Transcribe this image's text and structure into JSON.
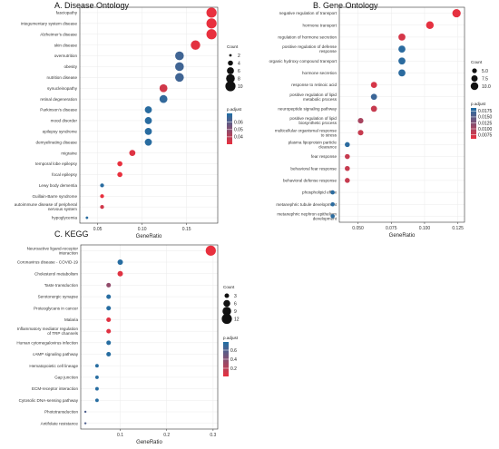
{
  "chart_data": [
    {
      "type": "scatter",
      "title": "A. Disease Ontology",
      "xlabel": "GeneRatio",
      "ylabel": "",
      "xlim": [
        0.03,
        0.185
      ],
      "xticks": [
        0.05,
        0.1,
        0.15
      ],
      "xtick_labels": [
        "0.05",
        "0.10",
        "0.15"
      ],
      "categories": [
        "fasciopathy",
        "integumentary system disease",
        "Alzheimer's disease",
        "skin disease",
        "overnutrition",
        "obesity",
        "nutrition disease",
        "synucleinopathy",
        "retinal degeneration",
        "Parkinson's disease",
        "mood disorder",
        "epilepsy syndrome",
        "demyelinating disease",
        "migraine",
        "temporal lobe epilepsy",
        "focal epilepsy",
        "Lewy body dementia",
        "Guillain-Barre syndrome",
        "autoimmune disease of peripheral nervous system",
        "hypoglycemia"
      ],
      "x": [
        0.178,
        0.178,
        0.178,
        0.16,
        0.142,
        0.142,
        0.142,
        0.124,
        0.124,
        0.107,
        0.107,
        0.107,
        0.107,
        0.089,
        0.075,
        0.075,
        0.055,
        0.055,
        0.055,
        0.038
      ],
      "count": [
        10,
        10,
        10,
        9,
        8,
        8,
        8,
        7,
        7,
        6,
        6,
        6,
        6,
        5,
        4,
        4,
        3,
        3,
        3,
        2
      ],
      "p_adjust": [
        0.03,
        0.03,
        0.03,
        0.031,
        0.065,
        0.065,
        0.065,
        0.035,
        0.068,
        0.07,
        0.07,
        0.07,
        0.07,
        0.032,
        0.03,
        0.03,
        0.07,
        0.03,
        0.035,
        0.07
      ],
      "legend_count": {
        "title": "Count",
        "values": [
          2,
          4,
          6,
          8,
          10
        ]
      },
      "legend_color": {
        "title": "p.adjust",
        "ticks": [
          0.04,
          0.05,
          0.06
        ],
        "range": [
          0.03,
          0.072
        ]
      }
    },
    {
      "type": "scatter",
      "title": "B. Gene Ontology",
      "xlabel": "GeneRatio",
      "ylabel": "",
      "xlim": [
        0.036,
        0.13
      ],
      "xticks": [
        0.05,
        0.075,
        0.1,
        0.125
      ],
      "xtick_labels": [
        "0.050",
        "0.075",
        "0.100",
        "0.125"
      ],
      "categories": [
        "negative regulation of transport",
        "hormone transport",
        "regulation of hormone secretion",
        "positive regulation of defense response",
        "organic hydroxy compound transport",
        "hormone secretion",
        "response to retinoic acid",
        "positive regulation of lipid metabolic process",
        "neuropeptide signaling pathway",
        "positive regulation of lipid biosynthetic process",
        "multicellular organismal response to stress",
        "plasma lipoprotein particle clearance",
        "fear response",
        "behavioral fear response",
        "behavioral defense response",
        "phospholipid efflux",
        "metanephric tubule development",
        "metanephric nephron epithelium development"
      ],
      "x": [
        0.124,
        0.104,
        0.083,
        0.083,
        0.083,
        0.083,
        0.062,
        0.062,
        0.062,
        0.052,
        0.052,
        0.042,
        0.042,
        0.042,
        0.042,
        0.031,
        0.031,
        0.031
      ],
      "count": [
        11.5,
        10,
        8.8,
        8.8,
        8.8,
        8.8,
        7.2,
        7.2,
        7.2,
        6.2,
        6.2,
        5.4,
        5.4,
        5.4,
        5.4,
        4.2,
        4.2,
        4.2
      ],
      "p_adjust": [
        0.006,
        0.006,
        0.007,
        0.018,
        0.018,
        0.018,
        0.007,
        0.017,
        0.008,
        0.01,
        0.008,
        0.018,
        0.008,
        0.008,
        0.008,
        0.018,
        0.018,
        0.018
      ],
      "legend_count": {
        "title": "Count",
        "values": [
          5.0,
          7.5,
          10.0
        ],
        "labels": [
          "5.0",
          "7.5",
          "10.0"
        ]
      },
      "legend_color": {
        "title": "p.adjust",
        "ticks": [
          0.0175,
          0.015,
          0.0125,
          0.01,
          0.0075
        ],
        "labels": [
          "0.0175",
          "0.0150",
          "0.0125",
          "0.0100",
          "0.0075"
        ],
        "range": [
          0.0058,
          0.0188
        ]
      }
    },
    {
      "type": "scatter",
      "title": "C. KEGG",
      "xlabel": "GeneRatio",
      "ylabel": "",
      "xlim": [
        0.015,
        0.31
      ],
      "xticks": [
        0.1,
        0.2,
        0.3
      ],
      "xtick_labels": [
        "0.1",
        "0.2",
        "0.3"
      ],
      "categories": [
        "Neuroactive ligand-receptor interaction",
        "Coronavirus disease - COVID-19",
        "Cholesterol metabolism",
        "Taste transduction",
        "Serotonergic synapse",
        "Proteoglycans in cancer",
        "Malaria",
        "Inflammatory mediator regulation of TRP channels",
        "Human cytomegalovirus infection",
        "cAMP signaling pathway",
        "Hematopoietic cell lineage",
        "Gap junction",
        "ECM-receptor interaction",
        "Cytosolic DNA-sensing pathway",
        "Phototransduction",
        "Antifolate resistance"
      ],
      "x": [
        0.295,
        0.1,
        0.1,
        0.075,
        0.075,
        0.075,
        0.075,
        0.075,
        0.075,
        0.075,
        0.05,
        0.05,
        0.05,
        0.05,
        0.025,
        0.025
      ],
      "count": [
        12,
        4,
        4,
        3,
        3,
        3,
        3,
        3,
        3,
        3,
        2,
        2,
        2,
        2,
        1,
        1
      ],
      "p_adjust": [
        0.02,
        0.75,
        0.05,
        0.35,
        0.75,
        0.75,
        0.05,
        0.05,
        0.75,
        0.75,
        0.75,
        0.75,
        0.75,
        0.75,
        0.6,
        0.6
      ],
      "legend_count": {
        "title": "Count",
        "values": [
          3,
          6,
          9,
          12
        ]
      },
      "legend_color": {
        "title": "p.adjust",
        "ticks": [
          0.6,
          0.4,
          0.2
        ],
        "range": [
          0.02,
          0.78
        ]
      }
    }
  ],
  "colors": {
    "low": "#e8303e",
    "high": "#1f6fa5",
    "grid": "#ebebeb"
  }
}
